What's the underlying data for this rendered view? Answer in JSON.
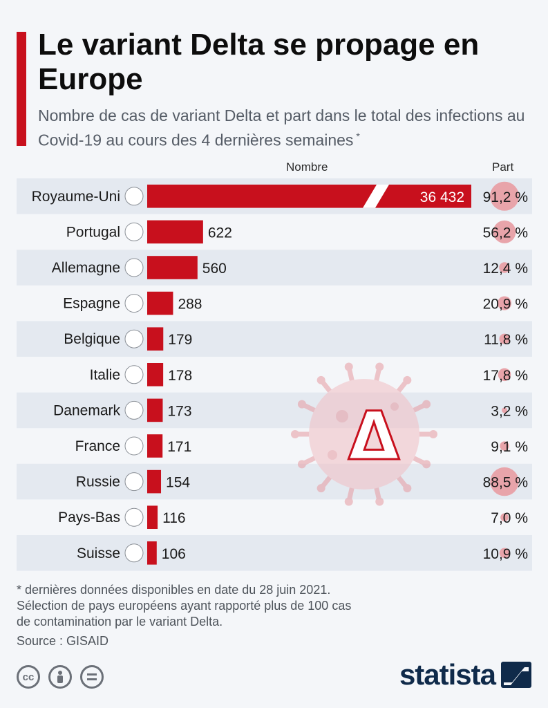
{
  "header": {
    "title": "Le variant Delta se propage en Europe",
    "subtitle": "Nombre de cas de variant Delta et part dans le total des infections au Covid-19 au cours des 4 dernières semaines",
    "subtitle_marker": "*"
  },
  "columns": {
    "count": "Nombre",
    "share": "Part"
  },
  "chart_data": {
    "type": "bar",
    "orientation": "horizontal",
    "categories": [
      "Royaume-Uni",
      "Portugal",
      "Allemagne",
      "Espagne",
      "Belgique",
      "Italie",
      "Danemark",
      "France",
      "Russie",
      "Pays-Bas",
      "Suisse"
    ],
    "values": [
      36432,
      622,
      560,
      288,
      179,
      178,
      173,
      171,
      154,
      116,
      106
    ],
    "value_labels": [
      "36 432",
      "622",
      "560",
      "288",
      "179",
      "178",
      "173",
      "171",
      "154",
      "116",
      "106"
    ],
    "share_percent": [
      91.2,
      56.2,
      12.4,
      20.9,
      11.8,
      17.8,
      3.2,
      9.1,
      88.5,
      7.0,
      10.9
    ],
    "share_labels": [
      "91,2 %",
      "56,2 %",
      "12,4 %",
      "20,9 %",
      "11,8 %",
      "17,8 %",
      "3,2 %",
      "9,1 %",
      "88,5 %",
      "7,0 %",
      "10,9 %"
    ],
    "axis_break_on": "Royaume-Uni",
    "grid": false,
    "colors": {
      "bar": "#c8101d",
      "share_circle": "#e8a4aa",
      "stripe": "#e4e9f0"
    }
  },
  "center_symbol": "Δ",
  "footnote": {
    "lines": [
      "* dernières données disponibles en date du 28 juin 2021.",
      "Sélection de pays européens ayant rapporté plus de 100 cas",
      "de contamination par le variant Delta."
    ],
    "source": "Source : GISAID"
  },
  "license_icons": [
    "cc-icon",
    "person-icon",
    "equals-icon"
  ],
  "brand": {
    "name": "statista",
    "color": "#0f2a4a"
  }
}
